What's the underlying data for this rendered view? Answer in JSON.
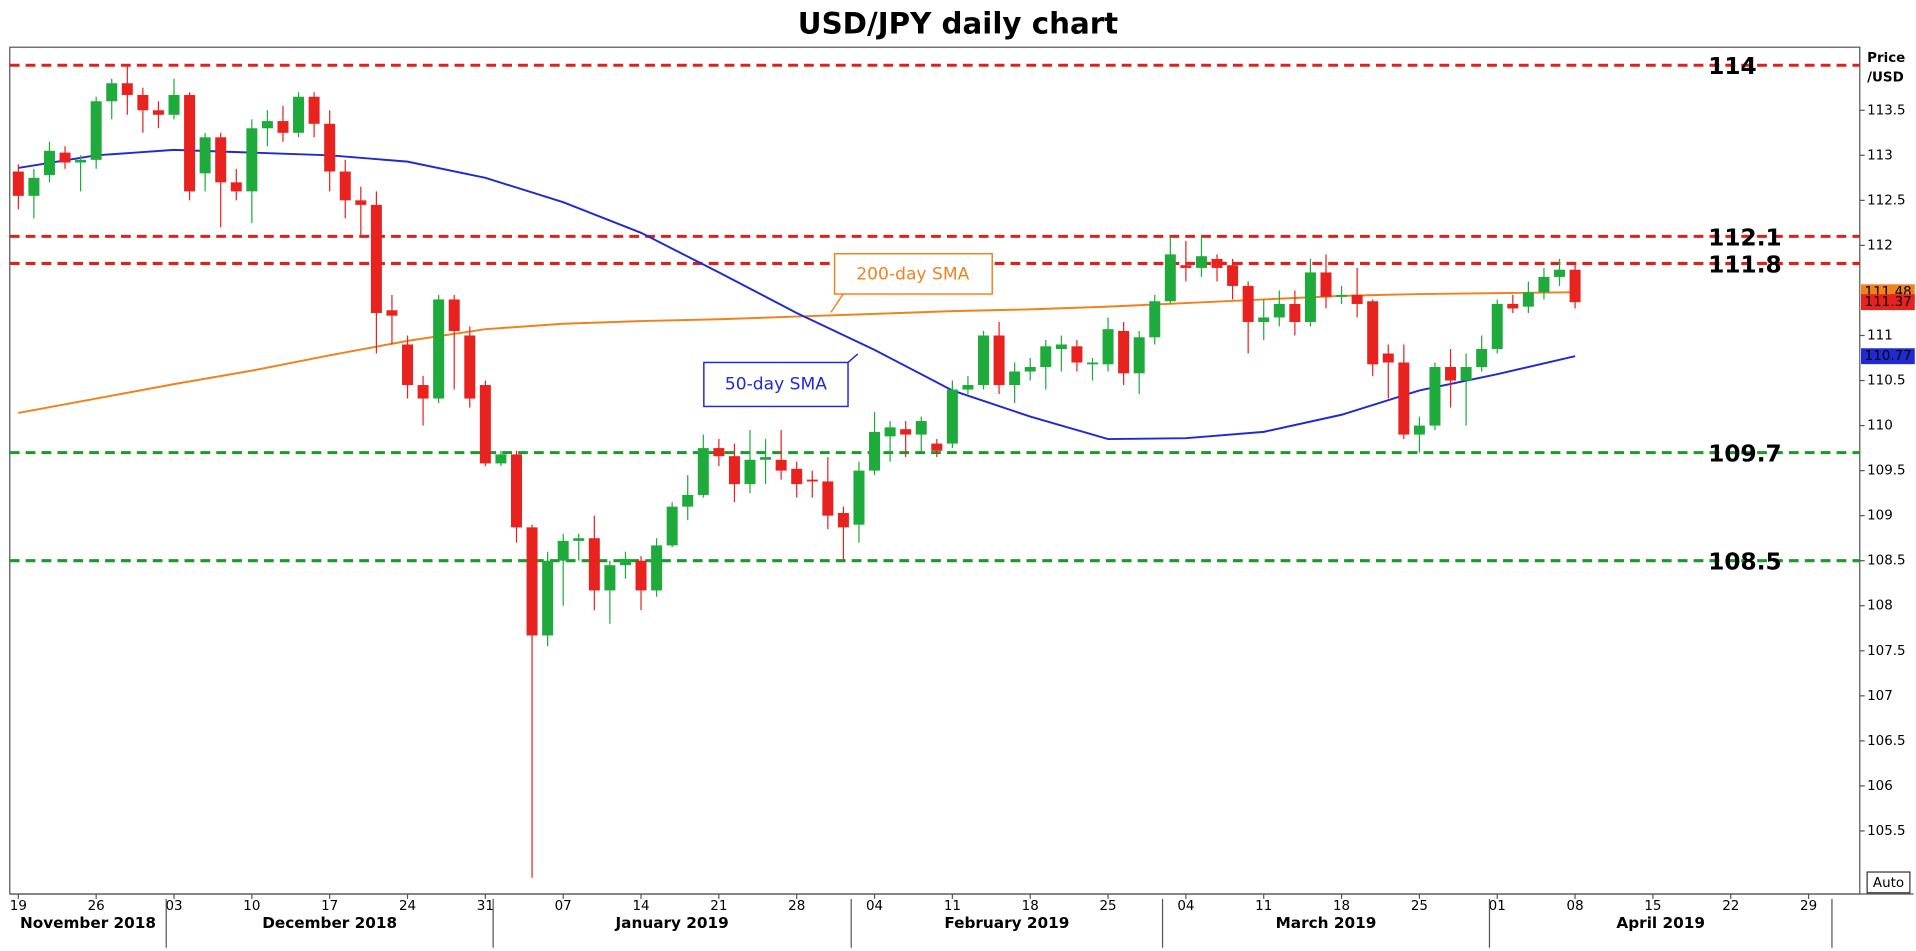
{
  "chart_data": {
    "type": "candlestick",
    "title": "USD/JPY daily chart",
    "ylabel": [
      "Price",
      "/USD"
    ],
    "button": "Auto",
    "up_color": "#1faa3c",
    "down_color": "#e8221f",
    "x": [
      "2018-11-19",
      "2018-11-20",
      "2018-11-21",
      "2018-11-22",
      "2018-11-23",
      "2018-11-26",
      "2018-11-27",
      "2018-11-28",
      "2018-11-29",
      "2018-11-30",
      "2018-12-03",
      "2018-12-04",
      "2018-12-05",
      "2018-12-06",
      "2018-12-07",
      "2018-12-10",
      "2018-12-11",
      "2018-12-12",
      "2018-12-13",
      "2018-12-14",
      "2018-12-17",
      "2018-12-18",
      "2018-12-19",
      "2018-12-20",
      "2018-12-21",
      "2018-12-24",
      "2018-12-25",
      "2018-12-26",
      "2018-12-27",
      "2018-12-28",
      "2018-12-31",
      "2019-01-01",
      "2019-01-02",
      "2019-01-03",
      "2019-01-04",
      "2019-01-07",
      "2019-01-08",
      "2019-01-09",
      "2019-01-10",
      "2019-01-11",
      "2019-01-14",
      "2019-01-15",
      "2019-01-16",
      "2019-01-17",
      "2019-01-18",
      "2019-01-21",
      "2019-01-22",
      "2019-01-23",
      "2019-01-24",
      "2019-01-25",
      "2019-01-28",
      "2019-01-29",
      "2019-01-30",
      "2019-01-31",
      "2019-02-01",
      "2019-02-04",
      "2019-02-05",
      "2019-02-06",
      "2019-02-07",
      "2019-02-08",
      "2019-02-11",
      "2019-02-12",
      "2019-02-13",
      "2019-02-14",
      "2019-02-15",
      "2019-02-18",
      "2019-02-19",
      "2019-02-20",
      "2019-02-21",
      "2019-02-22",
      "2019-02-25",
      "2019-02-26",
      "2019-02-27",
      "2019-02-28",
      "2019-03-01",
      "2019-03-04",
      "2019-03-05",
      "2019-03-06",
      "2019-03-07",
      "2019-03-08",
      "2019-03-11",
      "2019-03-12",
      "2019-03-13",
      "2019-03-14",
      "2019-03-15",
      "2019-03-18",
      "2019-03-19",
      "2019-03-20",
      "2019-03-21",
      "2019-03-22",
      "2019-03-25",
      "2019-03-26",
      "2019-03-27",
      "2019-03-28",
      "2019-03-29",
      "2019-04-01",
      "2019-04-02",
      "2019-04-03",
      "2019-04-04",
      "2019-04-05",
      "2019-04-08"
    ],
    "open": [
      112.82,
      112.55,
      112.78,
      113.03,
      112.92,
      112.95,
      113.6,
      113.8,
      113.67,
      113.5,
      113.45,
      113.67,
      112.8,
      113.2,
      112.7,
      112.6,
      113.3,
      113.38,
      113.25,
      113.65,
      113.35,
      112.82,
      112.5,
      112.45,
      111.28,
      110.9,
      110.45,
      110.3,
      111.4,
      111.0,
      110.45,
      109.58,
      109.68,
      108.87,
      107.67,
      108.5,
      108.72,
      108.75,
      108.17,
      108.45,
      108.5,
      108.17,
      108.67,
      109.1,
      109.23,
      109.75,
      109.66,
      109.35,
      109.62,
      109.62,
      109.52,
      109.4,
      109.38,
      109.03,
      108.9,
      109.5,
      109.88,
      109.96,
      109.9,
      109.8,
      109.8,
      110.4,
      110.45,
      111.0,
      110.45,
      110.6,
      110.65,
      110.85,
      110.88,
      110.68,
      110.68,
      111.05,
      110.58,
      110.98,
      111.38,
      111.78,
      111.75,
      111.85,
      111.78,
      111.55,
      111.15,
      111.2,
      111.35,
      111.15,
      111.7,
      111.43,
      111.45,
      111.38,
      110.8,
      110.7,
      109.9,
      110.0,
      110.65,
      110.5,
      110.65,
      110.85,
      111.35,
      111.32,
      111.48,
      111.65,
      111.73
    ],
    "high": [
      112.9,
      112.85,
      113.15,
      113.1,
      113.0,
      113.65,
      113.85,
      114.0,
      113.75,
      113.6,
      113.85,
      113.7,
      113.25,
      113.25,
      112.85,
      113.4,
      113.5,
      113.55,
      113.7,
      113.7,
      113.5,
      112.95,
      112.65,
      112.6,
      111.45,
      111.0,
      110.55,
      111.45,
      111.45,
      111.1,
      110.5,
      109.72,
      109.72,
      108.9,
      108.6,
      108.8,
      108.8,
      109.0,
      108.5,
      108.6,
      108.55,
      108.75,
      109.15,
      109.45,
      109.9,
      109.85,
      109.8,
      109.95,
      109.85,
      109.95,
      109.6,
      109.5,
      109.65,
      109.1,
      109.6,
      110.15,
      110.05,
      110.05,
      110.1,
      109.85,
      110.5,
      110.55,
      111.05,
      111.15,
      110.7,
      110.75,
      110.95,
      111.0,
      110.95,
      110.75,
      111.2,
      111.15,
      111.05,
      111.45,
      112.1,
      112.05,
      112.12,
      111.9,
      111.85,
      111.6,
      111.4,
      111.5,
      111.5,
      111.85,
      111.9,
      111.55,
      111.75,
      111.4,
      110.9,
      110.9,
      110.1,
      110.7,
      110.85,
      110.8,
      111.0,
      111.4,
      111.45,
      111.6,
      111.75,
      111.85,
      111.8
    ],
    "low": [
      112.4,
      112.3,
      112.7,
      112.85,
      112.6,
      112.85,
      113.4,
      113.45,
      113.25,
      113.3,
      113.4,
      112.5,
      112.6,
      112.2,
      112.5,
      112.25,
      113.1,
      113.15,
      113.2,
      113.2,
      112.6,
      112.3,
      112.1,
      110.8,
      110.9,
      110.3,
      110.0,
      110.25,
      110.4,
      110.2,
      109.55,
      109.55,
      108.7,
      104.98,
      107.55,
      108.0,
      108.5,
      107.95,
      107.8,
      108.3,
      107.95,
      108.1,
      108.65,
      108.95,
      109.2,
      109.55,
      109.15,
      109.25,
      109.35,
      109.4,
      109.2,
      109.2,
      108.85,
      108.5,
      108.7,
      109.45,
      109.6,
      109.65,
      109.7,
      109.65,
      109.75,
      110.35,
      110.4,
      110.35,
      110.25,
      110.5,
      110.4,
      110.6,
      110.6,
      110.5,
      110.6,
      110.45,
      110.35,
      110.9,
      111.35,
      111.6,
      111.65,
      111.6,
      111.4,
      110.8,
      110.95,
      111.1,
      111.0,
      111.1,
      111.3,
      111.35,
      111.2,
      110.55,
      110.3,
      109.85,
      109.7,
      109.95,
      110.2,
      110.0,
      110.6,
      110.8,
      111.25,
      111.25,
      111.4,
      111.55,
      111.3
    ],
    "close": [
      112.55,
      112.75,
      113.05,
      112.92,
      112.95,
      113.6,
      113.8,
      113.67,
      113.5,
      113.45,
      113.67,
      112.6,
      113.2,
      112.7,
      112.6,
      113.3,
      113.38,
      113.25,
      113.65,
      113.35,
      112.82,
      112.5,
      112.45,
      111.25,
      111.22,
      110.45,
      110.3,
      111.4,
      111.05,
      110.3,
      109.58,
      109.68,
      108.87,
      107.67,
      108.5,
      108.72,
      108.75,
      108.17,
      108.45,
      108.52,
      108.17,
      108.67,
      109.1,
      109.23,
      109.75,
      109.66,
      109.35,
      109.62,
      109.65,
      109.5,
      109.35,
      109.38,
      109.0,
      108.87,
      109.5,
      109.93,
      109.98,
      109.9,
      110.05,
      109.72,
      110.4,
      110.45,
      111.0,
      110.45,
      110.6,
      110.65,
      110.88,
      110.9,
      110.7,
      110.7,
      111.07,
      110.58,
      110.98,
      111.38,
      111.9,
      111.75,
      111.88,
      111.75,
      111.55,
      111.15,
      111.2,
      111.35,
      111.15,
      111.7,
      111.43,
      111.45,
      111.35,
      110.68,
      110.7,
      109.9,
      110.0,
      110.65,
      110.5,
      110.65,
      110.85,
      111.35,
      111.3,
      111.48,
      111.65,
      111.73,
      111.37
    ],
    "lines": [
      {
        "name": "200-day SMA",
        "color": "#f0821e",
        "x": [
          "2018-11-19",
          "2018-11-26",
          "2018-12-03",
          "2018-12-10",
          "2018-12-17",
          "2018-12-24",
          "2018-12-31",
          "2019-01-07",
          "2019-01-14",
          "2019-01-21",
          "2019-01-28",
          "2019-02-04",
          "2019-02-11",
          "2019-02-18",
          "2019-02-25",
          "2019-03-04",
          "2019-03-11",
          "2019-03-18",
          "2019-03-25",
          "2019-04-01",
          "2019-04-08"
        ],
        "values": [
          110.14,
          110.3,
          110.46,
          110.61,
          110.78,
          110.94,
          111.07,
          111.13,
          111.16,
          111.18,
          111.21,
          111.24,
          111.27,
          111.29,
          111.32,
          111.36,
          111.4,
          111.44,
          111.46,
          111.47,
          111.48
        ]
      },
      {
        "name": "50-day SMA",
        "color": "#1f2bd1",
        "x": [
          "2018-11-19",
          "2018-11-26",
          "2018-12-03",
          "2018-12-10",
          "2018-12-17",
          "2018-12-24",
          "2018-12-31",
          "2019-01-07",
          "2019-01-14",
          "2019-01-21",
          "2019-01-28",
          "2019-02-04",
          "2019-02-11",
          "2019-02-18",
          "2019-02-25",
          "2019-03-04",
          "2019-03-11",
          "2019-03-18",
          "2019-03-25",
          "2019-04-01",
          "2019-04-08"
        ],
        "values": [
          112.86,
          113.0,
          113.06,
          113.03,
          113.0,
          112.93,
          112.75,
          112.48,
          112.14,
          111.7,
          111.25,
          110.84,
          110.39,
          110.1,
          109.85,
          109.86,
          109.93,
          110.12,
          110.39,
          110.57,
          110.77
        ]
      }
    ],
    "levels": [
      {
        "value": 114,
        "color": "#e0201b"
      },
      {
        "value": 112.1,
        "color": "#e0201b"
      },
      {
        "value": 111.8,
        "color": "#e0201b"
      },
      {
        "value": 109.7,
        "color": "#1a9a2a"
      },
      {
        "value": 108.5,
        "color": "#1a9a2a"
      }
    ],
    "price_tags": [
      {
        "value": 111.48,
        "color": "#f0821e"
      },
      {
        "value": 111.37,
        "color": "#e8221f"
      },
      {
        "value": 110.77,
        "color": "#1f2bd1"
      }
    ],
    "ylim": [
      104.8,
      114.2
    ],
    "yticks": [
      105.5,
      106,
      106.5,
      107,
      107.5,
      108,
      108.5,
      109,
      109.5,
      110,
      110.5,
      111,
      112,
      112.5,
      113,
      113.5
    ],
    "xticks": [
      {
        "value": "2018-11-19",
        "label": "19"
      },
      {
        "value": "2018-11-26",
        "label": "26"
      },
      {
        "value": "2018-12-03",
        "label": "03"
      },
      {
        "value": "2018-12-10",
        "label": "10"
      },
      {
        "value": "2018-12-17",
        "label": "17"
      },
      {
        "value": "2018-12-24",
        "label": "24"
      },
      {
        "value": "2018-12-31",
        "label": "31"
      },
      {
        "value": "2019-01-07",
        "label": "07"
      },
      {
        "value": "2019-01-14",
        "label": "14"
      },
      {
        "value": "2019-01-21",
        "label": "21"
      },
      {
        "value": "2019-01-28",
        "label": "28"
      },
      {
        "value": "2019-02-04",
        "label": "04"
      },
      {
        "value": "2019-02-11",
        "label": "11"
      },
      {
        "value": "2019-02-18",
        "label": "18"
      },
      {
        "value": "2019-02-25",
        "label": "25"
      },
      {
        "value": "2019-03-04",
        "label": "04"
      },
      {
        "value": "2019-03-11",
        "label": "11"
      },
      {
        "value": "2019-03-18",
        "label": "18"
      },
      {
        "value": "2019-03-25",
        "label": "25"
      },
      {
        "value": "2019-04-01",
        "label": "01"
      },
      {
        "value": "2019-04-08",
        "label": "08"
      },
      {
        "value": "2019-04-15",
        "label": "15"
      },
      {
        "value": "2019-04-22",
        "label": "22"
      },
      {
        "value": "2019-04-29",
        "label": "29"
      }
    ],
    "months": [
      {
        "value": "2018-11",
        "label": "November 2018"
      },
      {
        "value": "2018-12",
        "label": "December 2018"
      },
      {
        "value": "2019-01",
        "label": "January 2019"
      },
      {
        "value": "2019-02",
        "label": "February 2019"
      },
      {
        "value": "2019-03",
        "label": "March 2019"
      },
      {
        "value": "2019-04",
        "label": "April 2019"
      }
    ]
  }
}
